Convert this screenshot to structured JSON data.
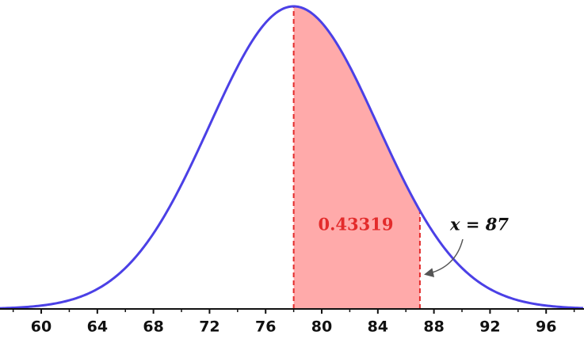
{
  "chart_data": {
    "type": "normal",
    "mean": 78,
    "sd": 6,
    "shade": [
      78,
      87
    ],
    "area_label": "0.43319",
    "annotation": "x = 87",
    "curve_color": "#4b40e6",
    "shade_color": "#ffaaaa",
    "edge_color": "#e32b2b",
    "xlim": [
      57.06,
      98.7
    ],
    "xticks": [
      60,
      64,
      68,
      72,
      76,
      80,
      84,
      88,
      92,
      96
    ],
    "minor_xticks": [
      58,
      62,
      66,
      70,
      74,
      78,
      82,
      86,
      90,
      94,
      98
    ]
  }
}
